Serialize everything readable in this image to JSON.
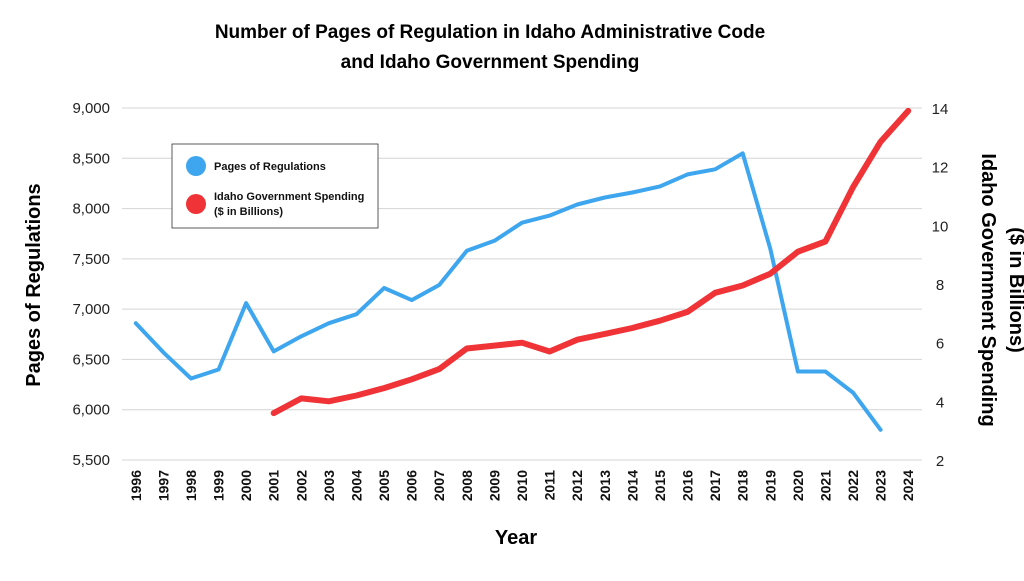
{
  "chart_data": {
    "type": "line",
    "title_lines": [
      "Number of Pages of Regulation in Idaho Administrative Code",
      "and Idaho Government Spending"
    ],
    "xlabel": "Year",
    "ylabel_left": "Pages of Regulations",
    "ylabel_right_lines": [
      "Idaho Government Spending",
      "($ in Billions)"
    ],
    "ylim_left": [
      5500,
      9000
    ],
    "yticks_left": [
      5500,
      6000,
      6500,
      7000,
      7500,
      8000,
      8500,
      9000
    ],
    "ytick_labels_left": [
      "5,500",
      "6,000",
      "6,500",
      "7,000",
      "7,500",
      "8,000",
      "8,500",
      "9,000"
    ],
    "ylim_right": [
      2,
      14
    ],
    "yticks_right": [
      2,
      4,
      6,
      8,
      10,
      12,
      14
    ],
    "ytick_labels_right": [
      "2",
      "4",
      "6",
      "8",
      "10",
      "12",
      "14"
    ],
    "categories": [
      "1996",
      "1997",
      "1998",
      "1999",
      "2000",
      "2001",
      "2002",
      "2003",
      "2004",
      "2005",
      "2006",
      "2007",
      "2008",
      "2009",
      "2010",
      "2011",
      "2012",
      "2013",
      "2014",
      "2015",
      "2016",
      "2017",
      "2018",
      "2019",
      "2020",
      "2021",
      "2022",
      "2023",
      "2024"
    ],
    "grid": true,
    "legend_position": "top-left",
    "series": [
      {
        "name": "Pages of Regulations",
        "legend_lines": [
          "Pages of Regulations"
        ],
        "axis": "left",
        "color": "#3ea6ee",
        "values": [
          6860,
          6570,
          6310,
          6400,
          7060,
          6580,
          6730,
          6860,
          6950,
          7210,
          7090,
          7240,
          7580,
          7680,
          7860,
          7930,
          8040,
          8110,
          8160,
          8220,
          8340,
          8390,
          8550,
          7600,
          6380,
          6380,
          6170,
          5800,
          null
        ]
      },
      {
        "name": "Idaho Government Spending ($ in Billions)",
        "legend_lines": [
          "Idaho Government Spending",
          "($ in Billions)"
        ],
        "axis": "right",
        "color": "#ef3336",
        "values": [
          null,
          null,
          null,
          null,
          null,
          3.6,
          4.1,
          4.0,
          4.2,
          4.45,
          4.75,
          5.1,
          5.8,
          5.9,
          6.0,
          5.7,
          6.1,
          6.3,
          6.5,
          6.75,
          7.05,
          7.7,
          7.95,
          8.35,
          9.1,
          9.45,
          11.3,
          12.85,
          13.9
        ]
      }
    ]
  }
}
